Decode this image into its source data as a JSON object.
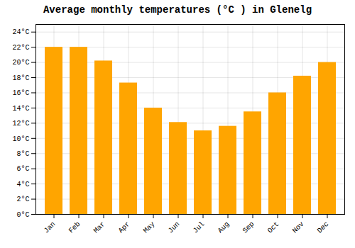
{
  "chart_data": {
    "type": "bar",
    "title": "Average monthly temperatures (°C ) in Glenelg",
    "categories": [
      "Jan",
      "Feb",
      "Mar",
      "Apr",
      "May",
      "Jun",
      "Jul",
      "Aug",
      "Sep",
      "Oct",
      "Nov",
      "Dec"
    ],
    "values": [
      22,
      22,
      20.2,
      17.3,
      14.0,
      12.1,
      11.0,
      11.6,
      13.5,
      16.0,
      18.2,
      20.0
    ],
    "color": "#FFA500",
    "ylim": [
      0,
      25
    ],
    "yticks": [
      {
        "value": 0,
        "label": "0°C"
      },
      {
        "value": 2,
        "label": "2°C"
      },
      {
        "value": 4,
        "label": "4°C"
      },
      {
        "value": 6,
        "label": "6°C"
      },
      {
        "value": 8,
        "label": "8°C"
      },
      {
        "value": 10,
        "label": "10°C"
      },
      {
        "value": 12,
        "label": "12°C"
      },
      {
        "value": 14,
        "label": "14°C"
      },
      {
        "value": 16,
        "label": "16°C"
      },
      {
        "value": 18,
        "label": "18°C"
      },
      {
        "value": 20,
        "label": "20°C"
      },
      {
        "value": 22,
        "label": "22°C"
      },
      {
        "value": 24,
        "label": "24°C"
      }
    ],
    "grid": true
  }
}
